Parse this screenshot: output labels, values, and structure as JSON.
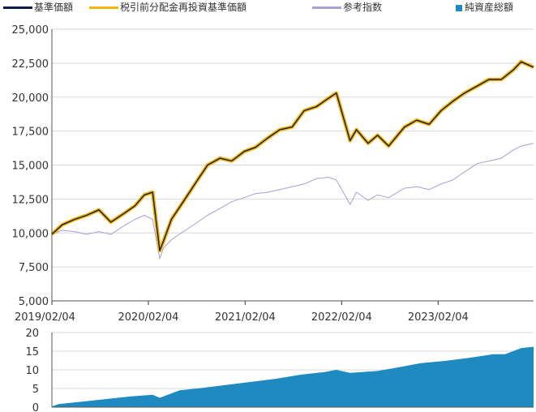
{
  "legend": [
    {
      "label": "基準価額",
      "color": "#0d1a4a",
      "kind": "line"
    },
    {
      "label": "税引前分配金再投資基準価額",
      "color": "#f5b400",
      "kind": "line"
    },
    {
      "label": "参考指数",
      "color": "#a99fd0",
      "kind": "line"
    },
    {
      "label": "純資産総額",
      "color": "#1e8ac0",
      "kind": "square"
    }
  ],
  "chart_data": [
    {
      "type": "line",
      "x_ticks": [
        "2019/02/04",
        "2020/02/04",
        "2021/02/04",
        "2022/02/04",
        "2023/02/04"
      ],
      "x_range": [
        "2019/02/04",
        "2024/01/31"
      ],
      "ylim": [
        5000,
        25000
      ],
      "y_ticks": [
        "5,000",
        "7,500",
        "10,000",
        "12,500",
        "15,000",
        "17,500",
        "20,000",
        "22,500",
        "25,000"
      ],
      "grid": true,
      "legend_position": "top",
      "series": [
        {
          "name": "基準価額",
          "color": "#0d1a4a",
          "x": [
            "2019/02/04",
            "2019/03/15",
            "2019/05/01",
            "2019/06/15",
            "2019/08/01",
            "2019/09/15",
            "2019/11/01",
            "2019/12/15",
            "2020/01/20",
            "2020/02/20",
            "2020/03/18",
            "2020/04/01",
            "2020/05/01",
            "2020/06/15",
            "2020/08/01",
            "2020/09/15",
            "2020/11/01",
            "2020/12/15",
            "2021/02/01",
            "2021/03/15",
            "2021/05/01",
            "2021/06/15",
            "2021/08/01",
            "2021/09/15",
            "2021/11/01",
            "2021/12/15",
            "2022/01/15",
            "2022/03/08",
            "2022/04/01",
            "2022/05/15",
            "2022/06/20",
            "2022/08/01",
            "2022/09/30",
            "2022/11/15",
            "2023/01/01",
            "2023/02/15",
            "2023/04/01",
            "2023/05/15",
            "2023/07/01",
            "2023/08/15",
            "2023/10/01",
            "2023/11/15",
            "2023/12/15",
            "2024/01/31"
          ],
          "values": [
            9900,
            10600,
            11000,
            11300,
            11700,
            10800,
            11400,
            12000,
            12800,
            13000,
            8700,
            9400,
            11000,
            12300,
            13700,
            15000,
            15500,
            15300,
            16000,
            16300,
            17000,
            17600,
            17800,
            19000,
            19300,
            19900,
            20300,
            16800,
            17600,
            16600,
            17200,
            16400,
            17800,
            18300,
            18000,
            19000,
            19700,
            20300,
            20800,
            21300,
            21300,
            22000,
            22600,
            22200
          ]
        },
        {
          "name": "税引前分配金再投資基準価額",
          "color": "#f5b400",
          "x": [
            "2019/02/04",
            "2019/03/15",
            "2019/05/01",
            "2019/06/15",
            "2019/08/01",
            "2019/09/15",
            "2019/11/01",
            "2019/12/15",
            "2020/01/20",
            "2020/02/20",
            "2020/03/18",
            "2020/04/01",
            "2020/05/01",
            "2020/06/15",
            "2020/08/01",
            "2020/09/15",
            "2020/11/01",
            "2020/12/15",
            "2021/02/01",
            "2021/03/15",
            "2021/05/01",
            "2021/06/15",
            "2021/08/01",
            "2021/09/15",
            "2021/11/01",
            "2021/12/15",
            "2022/01/15",
            "2022/03/08",
            "2022/04/01",
            "2022/05/15",
            "2022/06/20",
            "2022/08/01",
            "2022/09/30",
            "2022/11/15",
            "2023/01/01",
            "2023/02/15",
            "2023/04/01",
            "2023/05/15",
            "2023/07/01",
            "2023/08/15",
            "2023/10/01",
            "2023/11/15",
            "2023/12/15",
            "2024/01/31"
          ],
          "values": [
            9900,
            10600,
            11000,
            11300,
            11700,
            10800,
            11400,
            12000,
            12800,
            13000,
            8700,
            9400,
            11000,
            12300,
            13700,
            15000,
            15500,
            15300,
            16000,
            16300,
            17000,
            17600,
            17800,
            19000,
            19300,
            19900,
            20300,
            16800,
            17600,
            16600,
            17200,
            16400,
            17800,
            18300,
            18000,
            19000,
            19700,
            20300,
            20800,
            21300,
            21300,
            22000,
            22600,
            22200
          ]
        },
        {
          "name": "参考指数",
          "color": "#a99fd0",
          "x": [
            "2019/02/04",
            "2019/03/15",
            "2019/05/01",
            "2019/06/15",
            "2019/08/01",
            "2019/09/15",
            "2019/11/01",
            "2019/12/15",
            "2020/01/20",
            "2020/02/20",
            "2020/03/18",
            "2020/04/01",
            "2020/05/01",
            "2020/06/15",
            "2020/08/01",
            "2020/09/15",
            "2020/11/01",
            "2020/12/15",
            "2021/02/01",
            "2021/03/15",
            "2021/05/01",
            "2021/06/15",
            "2021/08/01",
            "2021/09/15",
            "2021/11/01",
            "2021/12/15",
            "2022/01/15",
            "2022/03/08",
            "2022/04/01",
            "2022/05/15",
            "2022/06/20",
            "2022/08/01",
            "2022/09/30",
            "2022/11/15",
            "2023/01/01",
            "2023/02/15",
            "2023/04/01",
            "2023/05/15",
            "2023/07/01",
            "2023/08/15",
            "2023/10/01",
            "2023/11/15",
            "2023/12/15",
            "2024/01/31"
          ],
          "values": [
            9900,
            10200,
            10100,
            9900,
            10100,
            9900,
            10500,
            11000,
            11300,
            11000,
            8100,
            8900,
            9500,
            10100,
            10700,
            11300,
            11800,
            12300,
            12600,
            12900,
            13000,
            13200,
            13400,
            13600,
            14000,
            14100,
            13900,
            12100,
            13000,
            12400,
            12800,
            12600,
            13300,
            13400,
            13200,
            13600,
            13900,
            14500,
            15100,
            15300,
            15500,
            16100,
            16400,
            16600
          ]
        }
      ]
    },
    {
      "type": "area",
      "x_ticks": [
        "2019/02/04",
        "2020/02/04",
        "2021/02/04",
        "2022/02/04",
        "2023/02/04"
      ],
      "ylim": [
        0,
        20
      ],
      "y_ticks": [
        "0",
        "5",
        "10",
        "15",
        "20"
      ],
      "series": [
        {
          "name": "純資産総額",
          "color": "#1e8ac0",
          "x": [
            "2019/02/04",
            "2019/03/01",
            "2019/06/01",
            "2019/09/01",
            "2019/12/01",
            "2020/02/20",
            "2020/03/18",
            "2020/06/01",
            "2020/09/01",
            "2020/12/01",
            "2021/03/01",
            "2021/06/01",
            "2021/09/01",
            "2021/12/01",
            "2022/01/15",
            "2022/03/08",
            "2022/06/20",
            "2022/09/01",
            "2022/12/01",
            "2023/03/01",
            "2023/06/01",
            "2023/09/01",
            "2023/10/15",
            "2023/12/15",
            "2024/01/31"
          ],
          "values": [
            0.2,
            0.8,
            1.5,
            2.2,
            2.9,
            3.3,
            2.5,
            4.5,
            5.2,
            6.0,
            6.8,
            7.6,
            8.7,
            9.4,
            10.0,
            9.2,
            9.7,
            10.6,
            11.8,
            12.4,
            13.2,
            14.2,
            14.2,
            15.8,
            16.2
          ]
        }
      ]
    }
  ]
}
